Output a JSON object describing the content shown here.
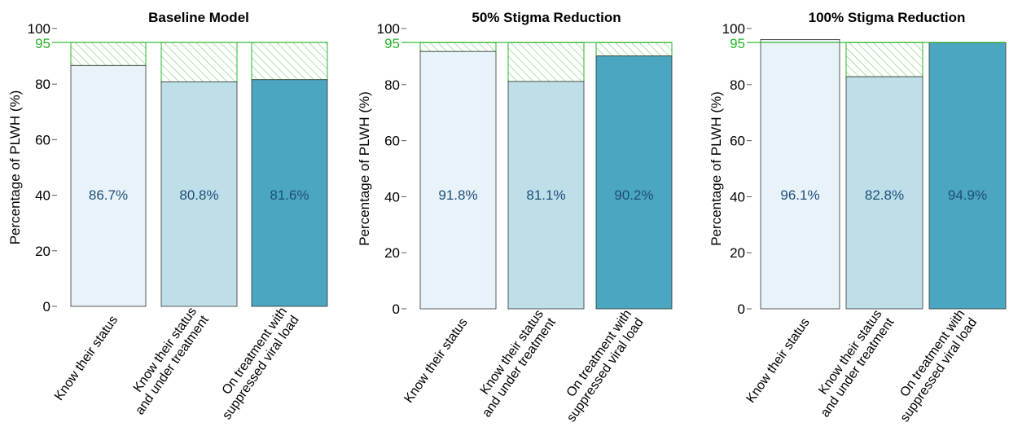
{
  "chart_data": [
    {
      "type": "bar",
      "title": "Baseline Model",
      "ylabel": "Percentage of PLWH (%)",
      "ylim": [
        0,
        100
      ],
      "yticks": [
        0,
        20,
        40,
        60,
        80,
        100
      ],
      "target": 95,
      "target_label": "95",
      "categories": [
        [
          "Know their status"
        ],
        [
          "Know their status",
          "and under treatment"
        ],
        [
          "On treatment with",
          "suppressed viral load"
        ]
      ],
      "values": [
        86.7,
        80.8,
        81.6
      ],
      "value_labels": [
        "86.7%",
        "80.8%",
        "81.6%"
      ]
    },
    {
      "type": "bar",
      "title": "50% Stigma Reduction",
      "ylabel": "Percentage of PLWH (%)",
      "ylim": [
        0,
        100
      ],
      "yticks": [
        0,
        20,
        40,
        60,
        80,
        100
      ],
      "target": 95,
      "target_label": "95",
      "categories": [
        [
          "Know their status"
        ],
        [
          "Know their status",
          "and under treatment"
        ],
        [
          "On treatment with",
          "suppressed viral load"
        ]
      ],
      "values": [
        91.8,
        81.1,
        90.2
      ],
      "value_labels": [
        "91.8%",
        "81.1%",
        "90.2%"
      ]
    },
    {
      "type": "bar",
      "title": "100% Stigma Reduction",
      "ylabel": "Percentage of PLWH (%)",
      "ylim": [
        0,
        100
      ],
      "yticks": [
        0,
        20,
        40,
        60,
        80,
        100
      ],
      "target": 95,
      "target_label": "95",
      "categories": [
        [
          "Know their status"
        ],
        [
          "Know their status",
          "and under treatment"
        ],
        [
          "On treatment with",
          "suppressed viral load"
        ]
      ],
      "values": [
        96.1,
        82.8,
        94.9
      ],
      "value_labels": [
        "96.1%",
        "82.8%",
        "94.9%"
      ]
    }
  ],
  "colors": {
    "bars": [
      "#e8f3f9",
      "#bedee8",
      "#4aa6c1"
    ],
    "bar_outline": "#333333",
    "target": "#2bb52b",
    "hatch": "#8fd18f",
    "value_label": "#1e4e7a"
  }
}
